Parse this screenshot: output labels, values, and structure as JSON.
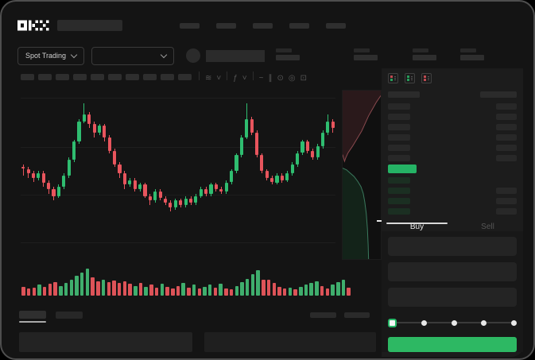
{
  "app": {
    "logo": "OKX"
  },
  "market_bar": {
    "market_type_label": "Spot Trading"
  },
  "chart_toolbar": {
    "items": [
      {
        "name": "divider"
      },
      {
        "name": "candle-style-icon",
        "glyph": "≋"
      },
      {
        "name": "chevron-down-icon",
        "glyph": "˅"
      },
      {
        "name": "divider"
      },
      {
        "name": "indicators-icon",
        "glyph": "ƒ"
      },
      {
        "name": "chevron-down-icon",
        "glyph": "˅"
      },
      {
        "name": "divider"
      },
      {
        "name": "line-tool-icon",
        "glyph": "~"
      },
      {
        "name": "draw-tools-icon",
        "glyph": "∥"
      },
      {
        "name": "screenshot-icon",
        "glyph": "⊙"
      },
      {
        "name": "settings-icon",
        "glyph": "◎"
      },
      {
        "name": "fullscreen-icon",
        "glyph": "⊡"
      }
    ]
  },
  "order_book": {
    "view_icons": [
      {
        "name": "orderbook-both-icon",
        "top": "#c14b52",
        "bottom": "#27a05c"
      },
      {
        "name": "orderbook-bids-icon",
        "top": "#27a05c",
        "bottom": "#27a05c"
      },
      {
        "name": "orderbook-asks-icon",
        "top": "#c14b52",
        "bottom": "#c14b52"
      }
    ],
    "ask_rows": 6,
    "bid_rows": [
      {
        "right": false
      },
      {
        "right": true
      },
      {
        "right": true
      },
      {
        "right": true
      }
    ]
  },
  "trade_form": {
    "tabs": [
      {
        "label": "Buy",
        "active": true
      },
      {
        "label": "Sell",
        "active": false
      }
    ],
    "fields": 3,
    "slider_stops": 5,
    "slider_value_index": 0
  },
  "colors": {
    "accent_green": "#26b566",
    "accent_red": "#e2565e",
    "price_bar_green": "#25b365",
    "buy_button_green": "#2db863"
  },
  "chart_data": {
    "type": "candlestick",
    "title": "",
    "xlabel": "",
    "ylabel": "",
    "ylim": [
      20,
      98
    ],
    "gridlines_pct": [
      6,
      34,
      61,
      88
    ],
    "up_color": "#2fbd70",
    "down_color": "#e8555d",
    "volume_up_color": "#3fae6d",
    "volume_down_color": "#dd5358",
    "candles": [
      [
        63,
        64,
        59,
        62
      ],
      [
        62,
        63,
        58,
        60
      ],
      [
        60,
        61,
        56,
        58
      ],
      [
        58,
        61,
        57,
        60
      ],
      [
        60,
        61,
        54,
        56
      ],
      [
        56,
        57,
        51,
        53
      ],
      [
        53,
        54,
        48,
        50
      ],
      [
        50,
        55,
        49,
        54
      ],
      [
        54,
        60,
        53,
        59
      ],
      [
        59,
        67,
        58,
        66
      ],
      [
        66,
        75,
        65,
        74
      ],
      [
        74,
        84,
        73,
        83
      ],
      [
        83,
        91,
        82,
        86
      ],
      [
        86,
        87,
        80,
        82
      ],
      [
        82,
        83,
        76,
        78
      ],
      [
        78,
        82,
        77,
        81
      ],
      [
        81,
        82,
        74,
        76
      ],
      [
        76,
        77,
        69,
        70
      ],
      [
        70,
        71,
        63,
        64
      ],
      [
        64,
        65,
        58,
        60
      ],
      [
        60,
        61,
        53,
        55
      ],
      [
        55,
        58,
        54,
        57
      ],
      [
        57,
        58,
        52,
        53
      ],
      [
        53,
        56,
        52,
        55
      ],
      [
        55,
        56,
        49,
        50
      ],
      [
        50,
        51,
        46,
        48
      ],
      [
        48,
        53,
        47,
        52
      ],
      [
        52,
        53,
        48,
        49
      ],
      [
        49,
        50,
        46,
        47
      ],
      [
        47,
        48,
        43,
        45
      ],
      [
        45,
        49,
        44,
        48
      ],
      [
        48,
        49,
        45,
        46
      ],
      [
        46,
        50,
        45,
        49
      ],
      [
        49,
        50,
        46,
        47
      ],
      [
        47,
        51,
        46,
        50
      ],
      [
        50,
        54,
        49,
        53
      ],
      [
        53,
        54,
        50,
        51
      ],
      [
        51,
        56,
        50,
        55
      ],
      [
        55,
        56,
        52,
        53
      ],
      [
        53,
        54,
        51,
        52
      ],
      [
        52,
        57,
        51,
        56
      ],
      [
        56,
        62,
        55,
        61
      ],
      [
        61,
        69,
        60,
        68
      ],
      [
        68,
        77,
        67,
        76
      ],
      [
        76,
        91,
        75,
        84
      ],
      [
        84,
        85,
        77,
        78
      ],
      [
        78,
        79,
        67,
        68
      ],
      [
        68,
        69,
        60,
        61
      ],
      [
        61,
        62,
        57,
        58
      ],
      [
        58,
        59,
        55,
        56
      ],
      [
        56,
        60,
        55,
        59
      ],
      [
        59,
        60,
        56,
        57
      ],
      [
        57,
        61,
        56,
        60
      ],
      [
        60,
        65,
        59,
        64
      ],
      [
        64,
        70,
        63,
        69
      ],
      [
        69,
        75,
        68,
        74
      ],
      [
        74,
        75,
        69,
        70
      ],
      [
        70,
        71,
        66,
        67
      ],
      [
        67,
        73,
        66,
        72
      ],
      [
        72,
        79,
        71,
        78
      ],
      [
        78,
        86,
        77,
        83
      ],
      [
        83,
        84,
        78,
        80
      ]
    ],
    "volume": [
      10,
      8,
      9,
      12,
      10,
      13,
      15,
      11,
      14,
      18,
      22,
      26,
      30,
      20,
      16,
      18,
      15,
      17,
      14,
      16,
      13,
      11,
      14,
      10,
      12,
      9,
      13,
      10,
      8,
      11,
      14,
      9,
      12,
      8,
      10,
      12,
      9,
      13,
      8,
      7,
      11,
      15,
      19,
      24,
      28,
      18,
      18,
      14,
      10,
      8,
      9,
      7,
      10,
      12,
      14,
      16,
      11,
      8,
      12,
      15,
      18,
      9
    ],
    "depth": {
      "asks_edge": [
        [
          0,
          38
        ],
        [
          5,
          42
        ],
        [
          8,
          40
        ],
        [
          14,
          37
        ],
        [
          20,
          35
        ],
        [
          26,
          33
        ],
        [
          34,
          30
        ],
        [
          42,
          27
        ],
        [
          50,
          24
        ],
        [
          58,
          20
        ],
        [
          68,
          15
        ],
        [
          78,
          11
        ],
        [
          88,
          7
        ],
        [
          100,
          3
        ]
      ],
      "bids_edge": [
        [
          0,
          46
        ],
        [
          10,
          47
        ],
        [
          20,
          49
        ],
        [
          30,
          51
        ],
        [
          40,
          54
        ],
        [
          48,
          57
        ],
        [
          54,
          61
        ],
        [
          58,
          66
        ],
        [
          62,
          73
        ],
        [
          65,
          82
        ],
        [
          67,
          92
        ],
        [
          68,
          100
        ]
      ],
      "asks_fill": "#2a191b",
      "bids_fill": "#132319",
      "asks_stroke": "#8a4a4f",
      "bids_stroke": "#3b7a5e"
    }
  }
}
